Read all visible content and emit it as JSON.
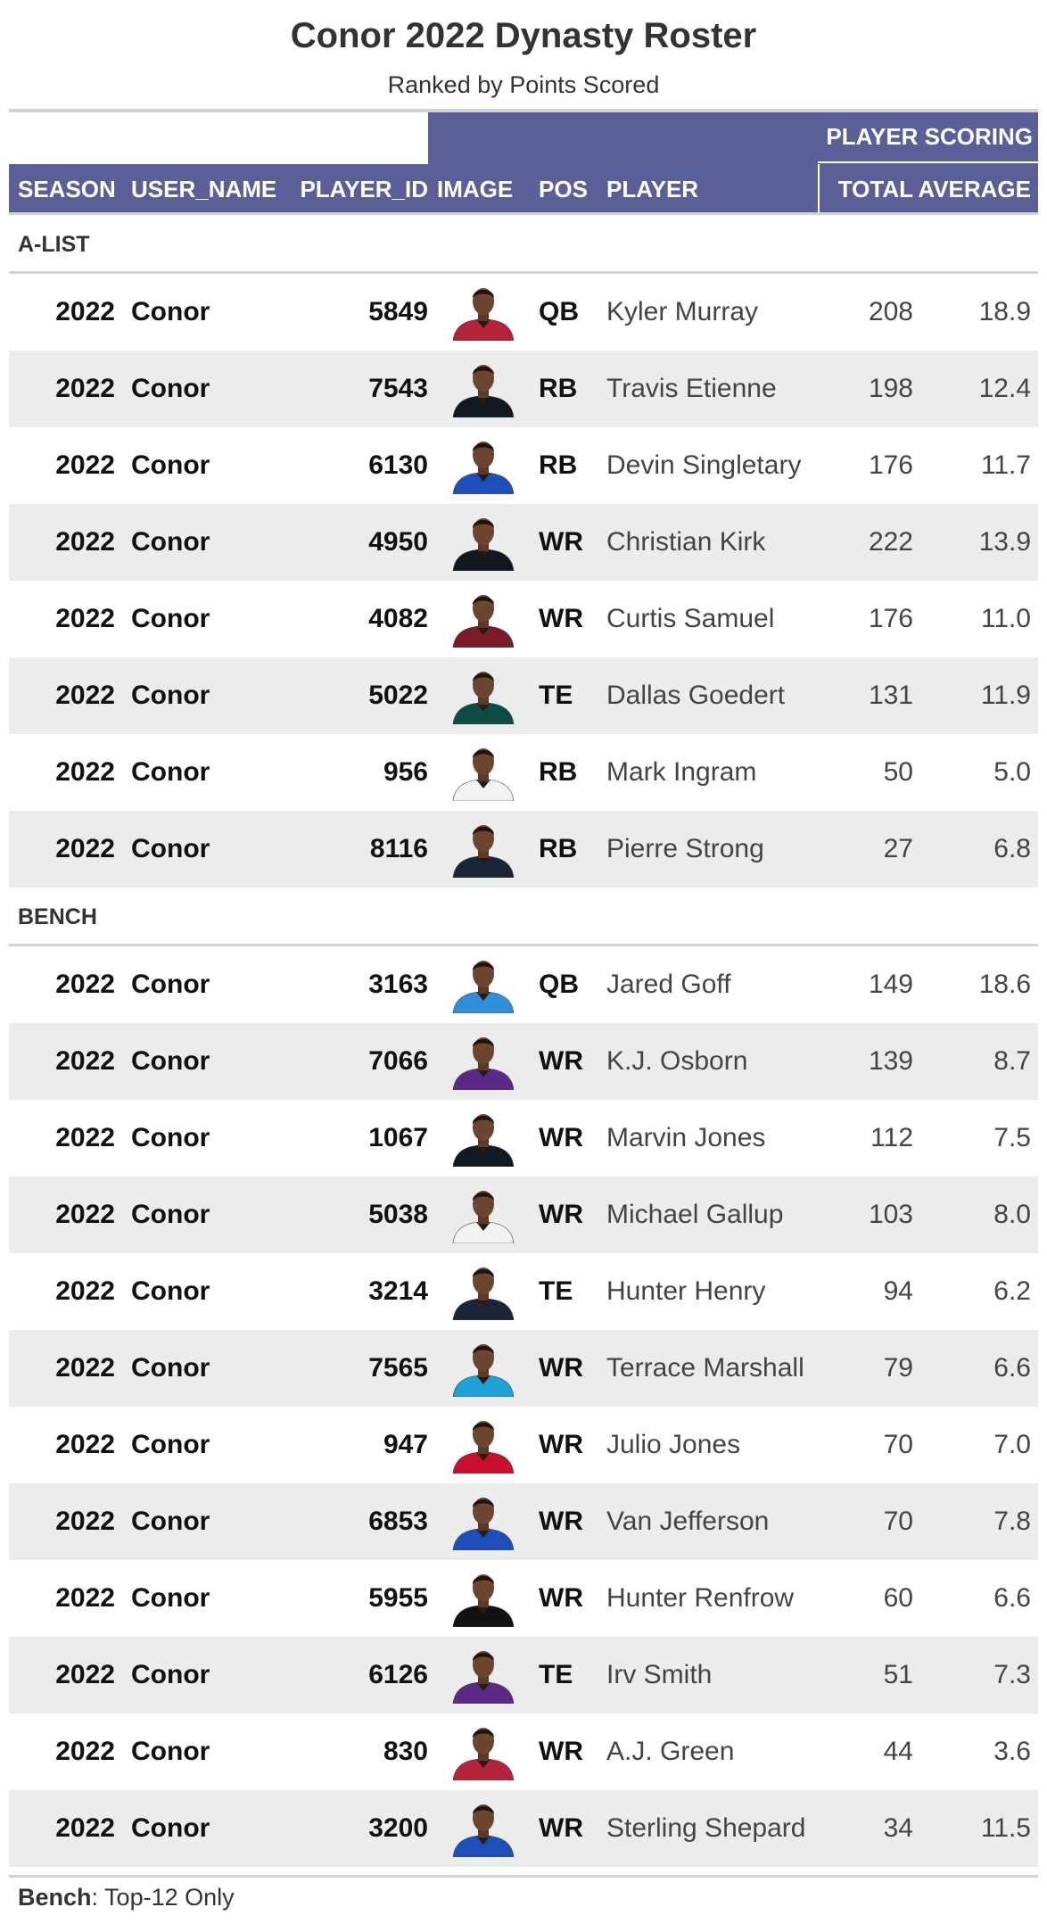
{
  "title": "Conor 2022 Dynasty Roster",
  "subtitle": "Ranked by Points Scored",
  "spanner": "PLAYER SCORING",
  "columns": {
    "season": "SEASON",
    "user_name": "USER_NAME",
    "player_id": "PLAYER_ID",
    "image": "IMAGE",
    "pos": "POS",
    "player": "PLAYER",
    "total": "TOTAL",
    "average": "AVERAGE"
  },
  "groups": [
    {
      "label": "A-LIST",
      "rows": [
        {
          "season": "2022",
          "user": "Conor",
          "pid": "5849",
          "pos": "QB",
          "player": "Kyler Murray",
          "total": "208",
          "avg": "18.9",
          "jersey": "#b3243c"
        },
        {
          "season": "2022",
          "user": "Conor",
          "pid": "7543",
          "pos": "RB",
          "player": "Travis Etienne",
          "total": "198",
          "avg": "12.4",
          "jersey": "#101820"
        },
        {
          "season": "2022",
          "user": "Conor",
          "pid": "6130",
          "pos": "RB",
          "player": "Devin Singletary",
          "total": "176",
          "avg": "11.7",
          "jersey": "#1e4fb8"
        },
        {
          "season": "2022",
          "user": "Conor",
          "pid": "4950",
          "pos": "WR",
          "player": "Christian Kirk",
          "total": "222",
          "avg": "13.9",
          "jersey": "#101820"
        },
        {
          "season": "2022",
          "user": "Conor",
          "pid": "4082",
          "pos": "WR",
          "player": "Curtis Samuel",
          "total": "176",
          "avg": "11.0",
          "jersey": "#7a1b2a"
        },
        {
          "season": "2022",
          "user": "Conor",
          "pid": "5022",
          "pos": "TE",
          "player": "Dallas Goedert",
          "total": "131",
          "avg": "11.9",
          "jersey": "#0b4c45"
        },
        {
          "season": "2022",
          "user": "Conor",
          "pid": "956",
          "pos": "RB",
          "player": "Mark Ingram",
          "total": "50",
          "avg": "5.0",
          "jersey": "#f2f2f2"
        },
        {
          "season": "2022",
          "user": "Conor",
          "pid": "8116",
          "pos": "RB",
          "player": "Pierre Strong",
          "total": "27",
          "avg": "6.8",
          "jersey": "#1a2538"
        }
      ]
    },
    {
      "label": "BENCH",
      "rows": [
        {
          "season": "2022",
          "user": "Conor",
          "pid": "3163",
          "pos": "QB",
          "player": "Jared Goff",
          "total": "149",
          "avg": "18.6",
          "jersey": "#2f8fd8"
        },
        {
          "season": "2022",
          "user": "Conor",
          "pid": "7066",
          "pos": "WR",
          "player": "K.J. Osborn",
          "total": "139",
          "avg": "8.7",
          "jersey": "#5b2a86"
        },
        {
          "season": "2022",
          "user": "Conor",
          "pid": "1067",
          "pos": "WR",
          "player": "Marvin Jones",
          "total": "112",
          "avg": "7.5",
          "jersey": "#101820"
        },
        {
          "season": "2022",
          "user": "Conor",
          "pid": "5038",
          "pos": "WR",
          "player": "Michael Gallup",
          "total": "103",
          "avg": "8.0",
          "jersey": "#f2f2f2"
        },
        {
          "season": "2022",
          "user": "Conor",
          "pid": "3214",
          "pos": "TE",
          "player": "Hunter Henry",
          "total": "94",
          "avg": "6.2",
          "jersey": "#1a2538"
        },
        {
          "season": "2022",
          "user": "Conor",
          "pid": "7565",
          "pos": "WR",
          "player": "Terrace Marshall",
          "total": "79",
          "avg": "6.6",
          "jersey": "#1fa0d8"
        },
        {
          "season": "2022",
          "user": "Conor",
          "pid": "947",
          "pos": "WR",
          "player": "Julio Jones",
          "total": "70",
          "avg": "7.0",
          "jersey": "#c8102e"
        },
        {
          "season": "2022",
          "user": "Conor",
          "pid": "6853",
          "pos": "WR",
          "player": "Van Jefferson",
          "total": "70",
          "avg": "7.8",
          "jersey": "#1e4fb8"
        },
        {
          "season": "2022",
          "user": "Conor",
          "pid": "5955",
          "pos": "WR",
          "player": "Hunter Renfrow",
          "total": "60",
          "avg": "6.6",
          "jersey": "#111111"
        },
        {
          "season": "2022",
          "user": "Conor",
          "pid": "6126",
          "pos": "TE",
          "player": "Irv Smith",
          "total": "51",
          "avg": "7.3",
          "jersey": "#5b2a86"
        },
        {
          "season": "2022",
          "user": "Conor",
          "pid": "830",
          "pos": "WR",
          "player": "A.J. Green",
          "total": "44",
          "avg": "3.6",
          "jersey": "#b3243c"
        },
        {
          "season": "2022",
          "user": "Conor",
          "pid": "3200",
          "pos": "WR",
          "player": "Sterling Shepard",
          "total": "34",
          "avg": "11.5",
          "jersey": "#1e4fb8"
        }
      ]
    }
  ],
  "footnote": {
    "bold": "Bench",
    "text": ": Top-12 Only"
  },
  "colors": {
    "header_bg": "#5b5f97",
    "stripe": "#ececec",
    "rule": "#d3d3d3"
  }
}
